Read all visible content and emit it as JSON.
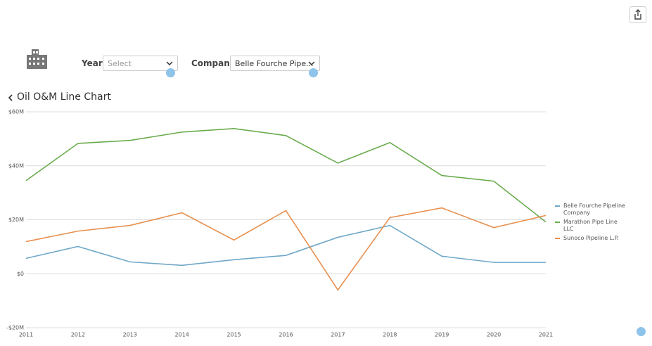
{
  "filters": [
    {
      "label": "Year",
      "value": "Select"
    },
    {
      "label": "Company",
      "value": "Belle Fourche Pipe..."
    }
  ],
  "chart_data": {
    "type": "line",
    "title": "Oil O&M Line Chart",
    "x": [
      2011,
      2012,
      2013,
      2014,
      2015,
      2016,
      2017,
      2018,
      2019,
      2020,
      2021
    ],
    "xlim": [
      2011,
      2021
    ],
    "xticks": [
      2011,
      2012,
      2013,
      2014,
      2015,
      2016,
      2017,
      2018,
      2019,
      2020,
      2021
    ],
    "ylim": [
      -20,
      60
    ],
    "yticks": [
      {
        "value": -20,
        "label": "-$20M"
      },
      {
        "value": 0,
        "label": "$0"
      },
      {
        "value": 20,
        "label": "$20M"
      },
      {
        "value": 40,
        "label": "$40M"
      },
      {
        "value": 60,
        "label": "$60M"
      }
    ],
    "grid": true,
    "legend": "right",
    "series": [
      {
        "name": "Belle Fourche Pipeline Company",
        "color": "#6fa8c8",
        "values": [
          5.7,
          10.1,
          4.4,
          3.1,
          5.2,
          6.8,
          13.5,
          17.9,
          6.5,
          4.2,
          4.2
        ]
      },
      {
        "name": "Marathon Pipe Line LLC",
        "color": "#6aac4e",
        "values": [
          34.5,
          48.3,
          49.4,
          52.5,
          53.8,
          51.2,
          41.0,
          48.6,
          36.4,
          34.3,
          19.2
        ]
      },
      {
        "name": "Sunoco Pipeline L.P.",
        "color": "#e8904f",
        "values": [
          11.9,
          15.8,
          17.9,
          22.6,
          12.5,
          23.4,
          -6.0,
          20.8,
          24.4,
          17.1,
          21.6
        ]
      }
    ]
  }
}
